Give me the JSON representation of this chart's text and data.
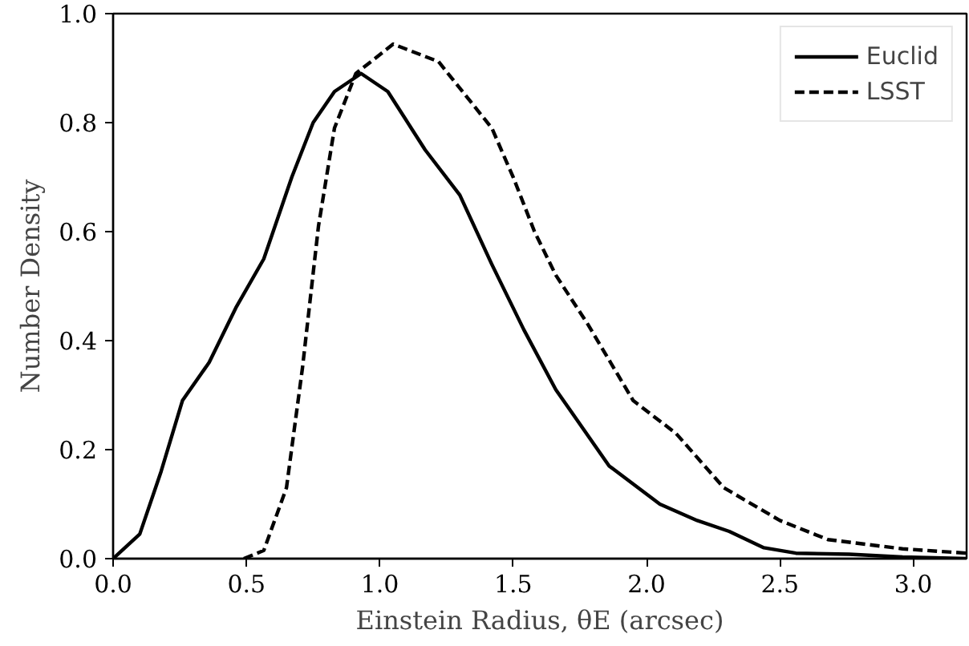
{
  "chart_data": {
    "type": "line",
    "xlabel": "Einstein Radius, θE (arcsec)",
    "ylabel": "Number Density",
    "xlim": [
      0,
      3.2
    ],
    "ylim": [
      0,
      1.0
    ],
    "xticks": [
      {
        "value": 0,
        "label": "0.0"
      },
      0.5,
      {
        "value": 1,
        "label": "1.0"
      },
      1.5,
      {
        "value": 2,
        "label": "2.0"
      },
      2.5,
      {
        "value": 3,
        "label": "3.0"
      }
    ],
    "yticks": [
      {
        "value": 0,
        "label": "0.0"
      },
      0.2,
      0.4,
      0.6,
      0.8,
      {
        "value": 1,
        "label": "1.0"
      }
    ],
    "grid": false,
    "legend": "top right",
    "marker": "none",
    "series": [
      {
        "name": "Euclid",
        "color": "#000000",
        "line_style": "solid",
        "x": [
          0,
          0.1,
          0.18,
          0.26,
          0.36,
          0.46,
          0.565,
          0.67,
          0.75,
          0.83,
          0.93,
          1.03,
          1.17,
          1.3,
          1.42,
          1.54,
          1.66,
          1.86,
          2.05,
          2.19,
          2.31,
          2.44,
          2.56,
          2.76,
          2.96,
          3.2
        ],
        "values": [
          0,
          0.045,
          0.16,
          0.29,
          0.36,
          0.46,
          0.55,
          0.7,
          0.8,
          0.857,
          0.89,
          0.857,
          0.75,
          0.667,
          0.54,
          0.42,
          0.31,
          0.17,
          0.1,
          0.07,
          0.05,
          0.02,
          0.01,
          0.008,
          0.003,
          0
        ]
      },
      {
        "name": "LSST",
        "color": "#000000",
        "line_style": "dashed",
        "x": [
          0.49,
          0.565,
          0.65,
          0.71,
          0.77,
          0.83,
          0.91,
          1.05,
          1.22,
          1.42,
          1.5,
          1.58,
          1.66,
          1.78,
          1.95,
          2.11,
          2.29,
          2.5,
          2.68,
          2.96,
          3.2
        ],
        "values": [
          0,
          0.015,
          0.13,
          0.35,
          0.61,
          0.79,
          0.89,
          0.944,
          0.912,
          0.79,
          0.7,
          0.6,
          0.52,
          0.43,
          0.29,
          0.23,
          0.13,
          0.07,
          0.035,
          0.018,
          0.01
        ]
      }
    ]
  }
}
